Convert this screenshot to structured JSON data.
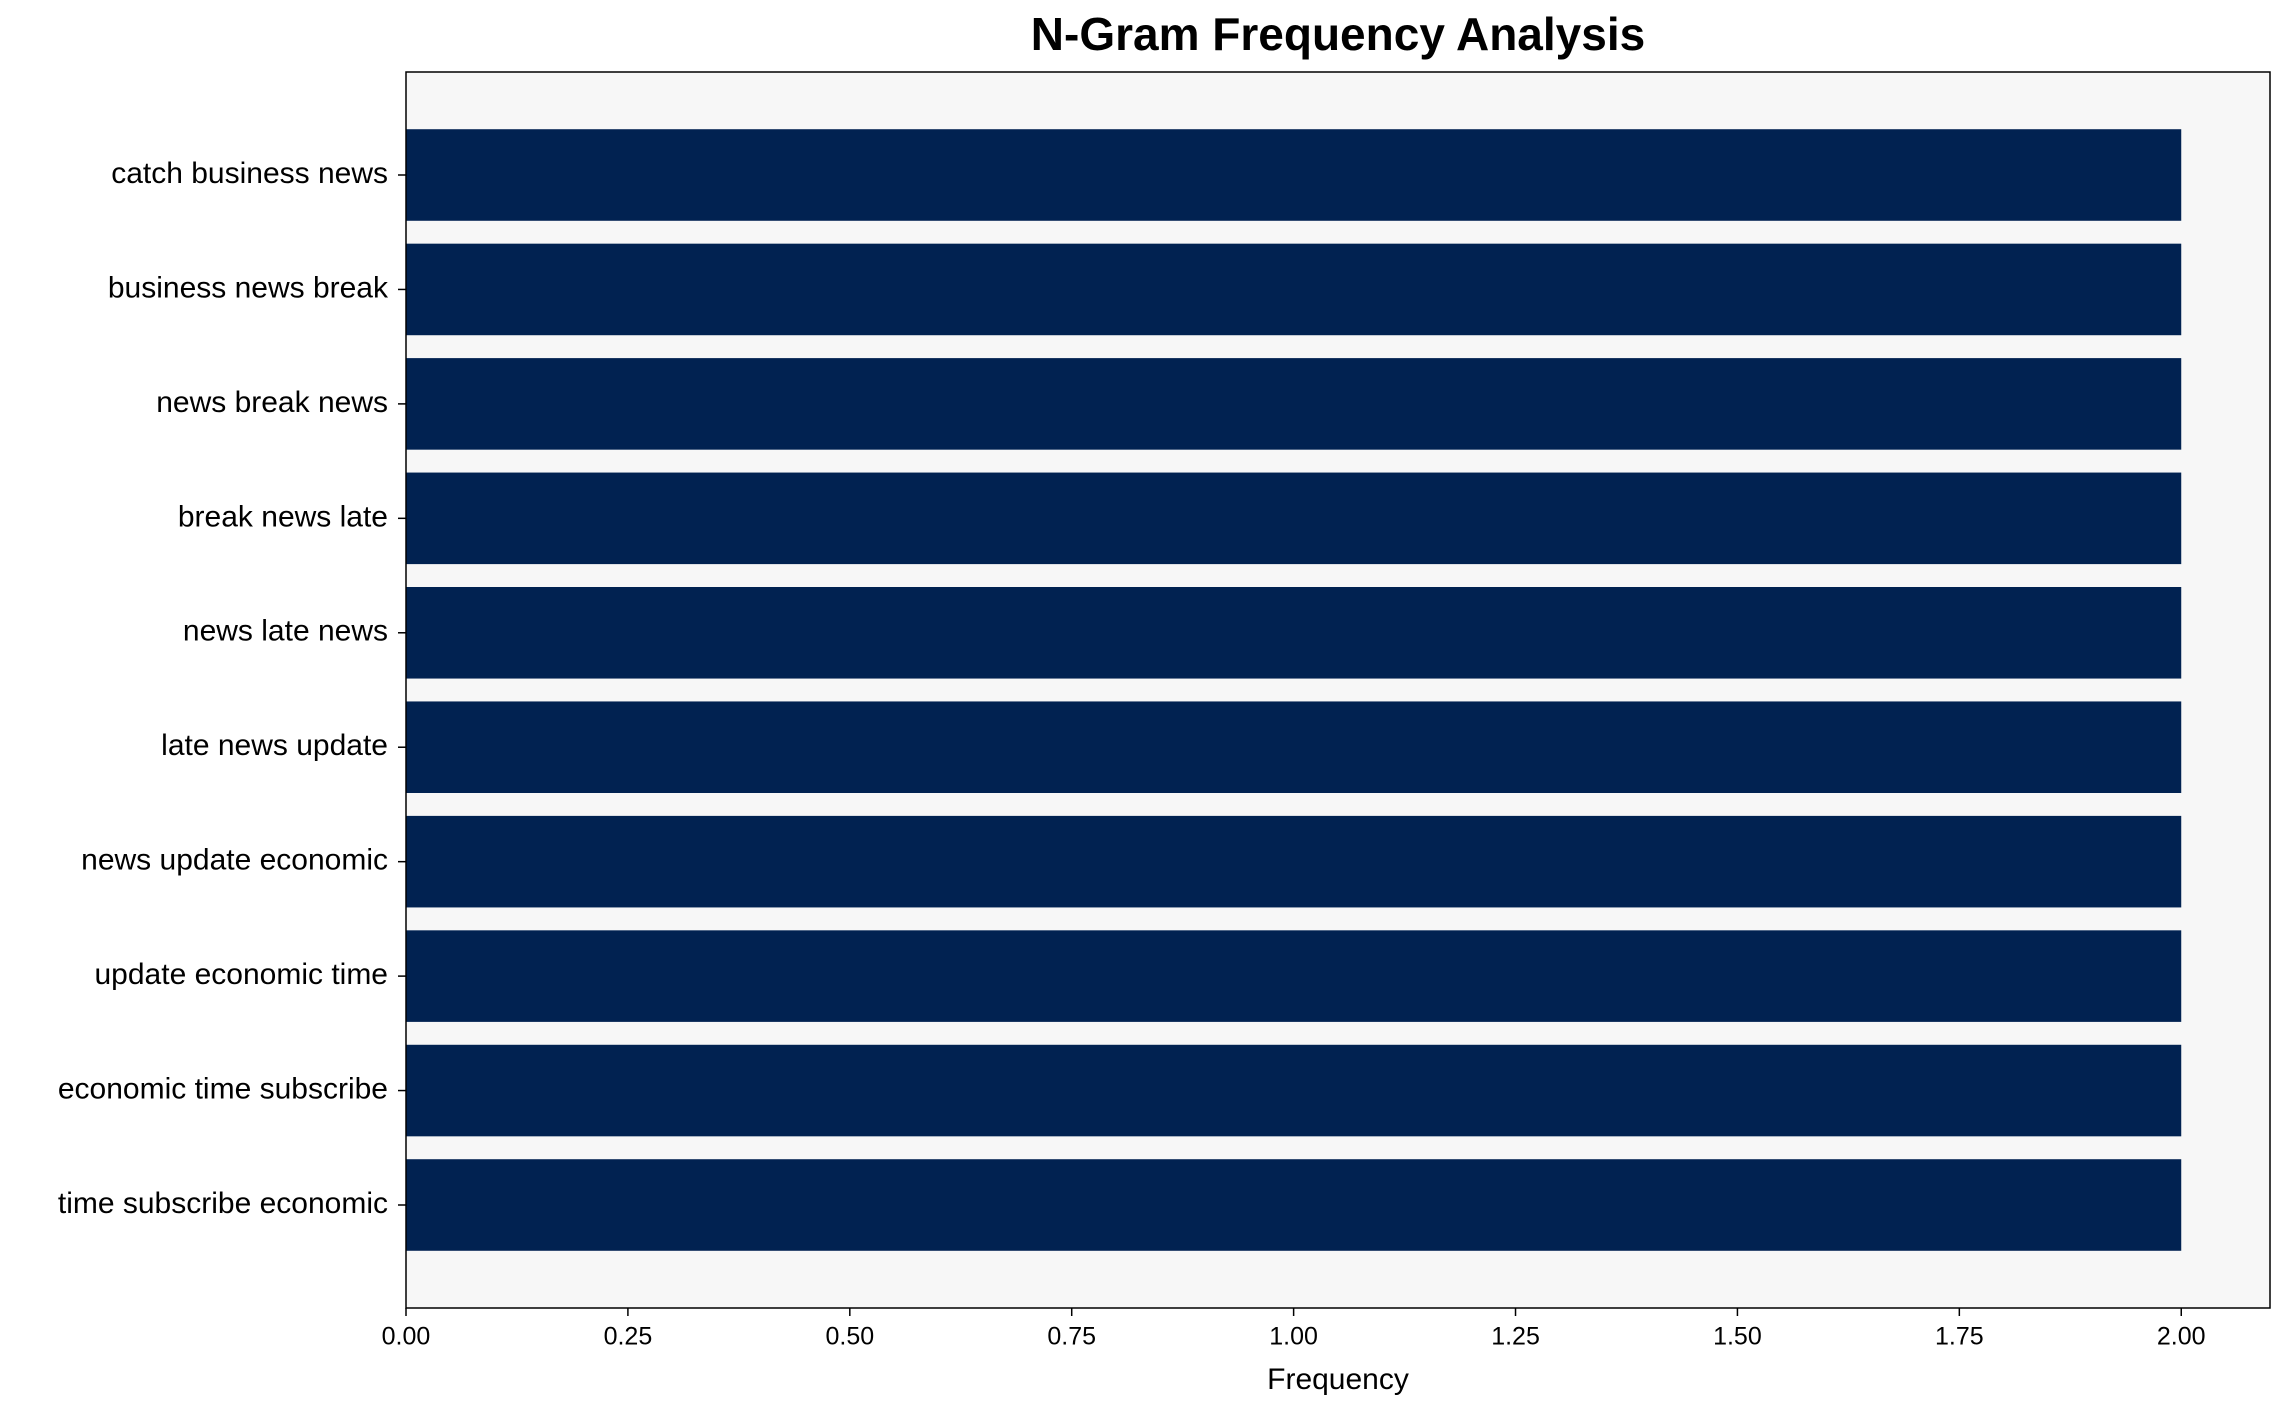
{
  "chart_data": {
    "type": "barh",
    "title": "N-Gram Frequency Analysis",
    "x_label": "Frequency",
    "categories": [
      "catch business news",
      "business news break",
      "news break news",
      "break news late",
      "news late news",
      "late news update",
      "news update economic",
      "update economic time",
      "economic time subscribe",
      "time subscribe economic"
    ],
    "values": [
      2,
      2,
      2,
      2,
      2,
      2,
      2,
      2,
      2,
      2
    ],
    "color": "#012251",
    "background": "#f7f7f7",
    "xlim": [
      0,
      2.1
    ],
    "xticks": [
      {
        "value": 0,
        "label": "0.00"
      },
      {
        "value": 0.25,
        "label": "0.25"
      },
      {
        "value": 0.5,
        "label": "0.50"
      },
      {
        "value": 0.75,
        "label": "0.75"
      },
      {
        "value": 1,
        "label": "1.00"
      },
      {
        "value": 1.25,
        "label": "1.25"
      },
      {
        "value": 1.5,
        "label": "1.50"
      },
      {
        "value": 1.75,
        "label": "1.75"
      },
      {
        "value": 2,
        "label": "2.00"
      }
    ]
  }
}
